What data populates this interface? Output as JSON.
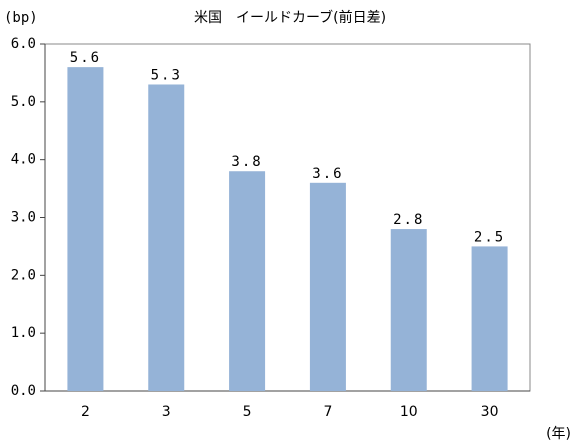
{
  "chart_data": {
    "type": "bar",
    "title": "米国　イールドカーブ(前日差)",
    "y_label": "(bp)",
    "x_label": "(年)",
    "categories": [
      "2",
      "3",
      "5",
      "7",
      "10",
      "30"
    ],
    "values": [
      5.6,
      5.3,
      3.8,
      3.6,
      2.8,
      2.5
    ],
    "color": "#95b3d7",
    "ylim": [
      0,
      6
    ],
    "yticks": [
      {
        "value": 0,
        "label": "0.0"
      },
      {
        "value": 1,
        "label": "1.0"
      },
      {
        "value": 2,
        "label": "2.0"
      },
      {
        "value": 3,
        "label": "3.0"
      },
      {
        "value": 4,
        "label": "4.0"
      },
      {
        "value": 5,
        "label": "5.0"
      },
      {
        "value": 6,
        "label": "6.0"
      }
    ],
    "grid": false
  }
}
